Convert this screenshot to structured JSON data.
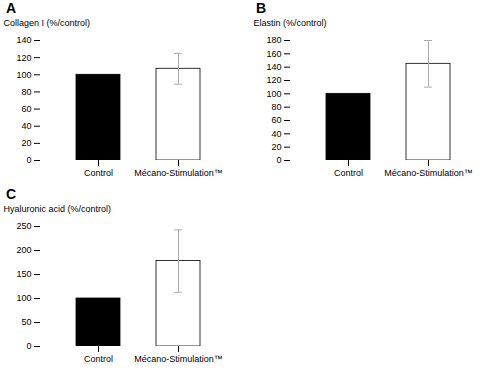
{
  "chart_data": [
    {
      "type": "bar",
      "title": "A",
      "ylabel": "Collagen I (%/control)",
      "categories": [
        "Control",
        "Mécano-Stimulation™"
      ],
      "values": [
        100,
        107
      ],
      "errors": [
        0,
        18
      ],
      "colors": [
        "black",
        "white"
      ],
      "ylim": [
        0,
        140
      ],
      "yticks": [
        0,
        20,
        40,
        60,
        80,
        100,
        120,
        140
      ],
      "grid": false
    },
    {
      "type": "bar",
      "title": "B",
      "ylabel": "Elastin (%/control)",
      "categories": [
        "Control",
        "Mécano-Stimulation™"
      ],
      "values": [
        100,
        145
      ],
      "errors": [
        0,
        35
      ],
      "colors": [
        "black",
        "white"
      ],
      "ylim": [
        0,
        180
      ],
      "yticks": [
        0,
        20,
        40,
        60,
        80,
        100,
        120,
        140,
        160,
        180
      ],
      "grid": false
    },
    {
      "type": "bar",
      "title": "C",
      "ylabel": "Hyaluronic acid (%/control)",
      "categories": [
        "Control",
        "Mécano-Stimulation™"
      ],
      "values": [
        100,
        178
      ],
      "errors": [
        0,
        65
      ],
      "colors": [
        "black",
        "white"
      ],
      "ylim": [
        0,
        250
      ],
      "yticks": [
        0,
        50,
        100,
        150,
        200,
        250
      ],
      "grid": false
    }
  ]
}
